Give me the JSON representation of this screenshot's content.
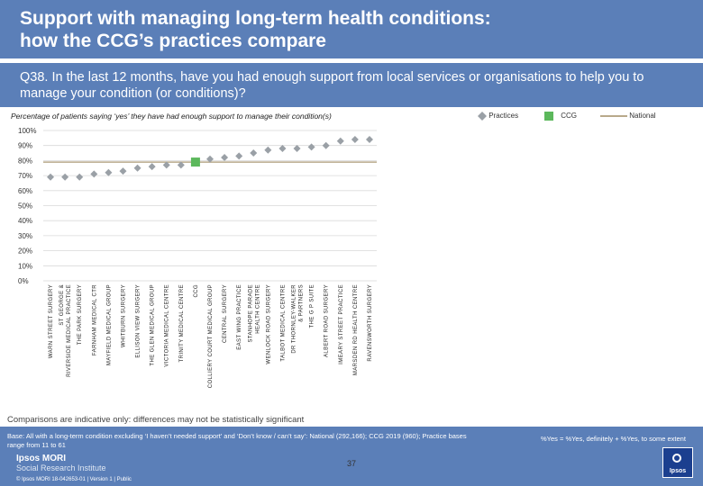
{
  "header": {
    "title": "Support with managing long-term health conditions:\nhow the CCG’s practices compare"
  },
  "question": "Q38. In the last 12 months, have you had enough support from local services or organisations to help you to manage your condition (or conditions)?",
  "colors": {
    "brand_blue": "#5b7fb8",
    "marker_grey": "#9aa0a6",
    "ccg_green": "#5cb85c",
    "national_line": "#b8a98a",
    "grid": "#d9d9d9"
  },
  "chart_data": {
    "type": "scatter",
    "title": "Percentage of patients saying ‘yes’ they have had enough support to manage their condition(s)",
    "ylim": [
      0,
      100
    ],
    "yticks": [
      "0%",
      "10%",
      "20%",
      "30%",
      "40%",
      "50%",
      "60%",
      "70%",
      "80%",
      "90%",
      "100%"
    ],
    "grid": true,
    "legend": {
      "position": "top-right",
      "items": [
        {
          "label": "Practices",
          "marker": "diamond"
        },
        {
          "label": "CCG",
          "marker": "square"
        },
        {
          "label": "National",
          "marker": "line"
        }
      ]
    },
    "categories": [
      "WARN STREET SURGERY",
      "ST GEORGE & RIVERSIDE MEDICAL PRACTICE",
      "THE PARK SURGERY",
      "FARNHAM MEDICAL CTR",
      "MAYFIELD MEDICAL GROUP",
      "WHITBURN SURGERY",
      "ELLISON VIEW SURGERY",
      "THE GLEN MEDICAL GROUP",
      "VICTORIA MEDICAL CENTRE",
      "TRINITY MEDICAL CENTRE",
      "CCG",
      "COLLIERY COURT MEDICAL GROUP",
      "CENTRAL SURGERY",
      "EAST WING PRACTICE",
      "STANHOPE PARADE HEALTH CENTRE",
      "WENLOCK ROAD SURGERY",
      "TALBOT MEDICAL CENTRE",
      "DR THORNLEY-WALKER & PARTNERS",
      "THE G P SUITE",
      "ALBERT ROAD SURGERY",
      "IMEARY STREET PRACTICE",
      "MARSDEN RD HEALTH CENTRE",
      "RAVENSWORTH SURGERY"
    ],
    "series": [
      {
        "name": "Practices",
        "values": [
          69,
          69,
          69,
          71,
          72,
          73,
          75,
          76,
          77,
          77,
          null,
          81,
          82,
          83,
          85,
          87,
          88,
          88,
          89,
          90,
          93,
          94,
          94
        ]
      },
      {
        "name": "CCG",
        "values": [
          null,
          null,
          null,
          null,
          null,
          null,
          null,
          null,
          null,
          null,
          79,
          null,
          null,
          null,
          null,
          null,
          null,
          null,
          null,
          null,
          null,
          null,
          null
        ]
      },
      {
        "name": "National",
        "values": [
          79,
          79,
          79,
          79,
          79,
          79,
          79,
          79,
          79,
          79,
          79,
          79,
          79,
          79,
          79,
          79,
          79,
          79,
          79,
          79,
          79,
          79,
          79
        ]
      }
    ]
  },
  "note": "Comparisons are indicative only: differences may not be statistically significant",
  "footer": {
    "base_text": "Base: All with a long-term condition excluding ‘I haven’t needed support’ and ‘Don’t know / can’t say’: National (292,166); CCG 2019 (960); Practice bases range from 11 to 61",
    "key_note": "%Yes = %Yes, definitely + %Yes, to some extent",
    "page_number": "37",
    "brand_line1": "Ipsos MORI",
    "brand_line2": "Social Research Institute",
    "copyright": "© Ipsos MORI     18-042653-01 | Version 1 | Public",
    "logo_text": "Ipsos"
  }
}
